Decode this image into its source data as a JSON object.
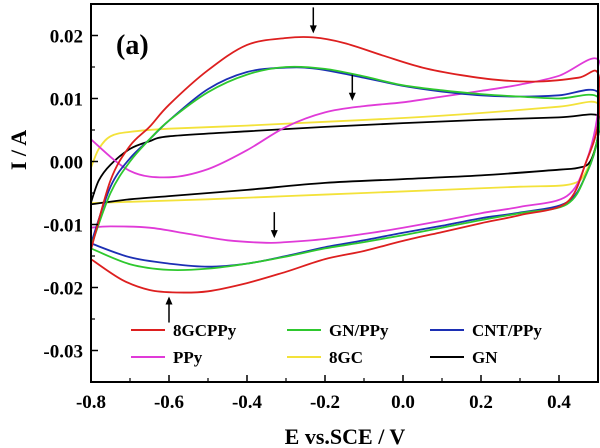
{
  "chart_data": {
    "type": "line",
    "panel_label": "(a)",
    "xlabel": "E vs.SCE / V",
    "ylabel": "I / A",
    "xlim": [
      -0.8,
      0.5
    ],
    "ylim": [
      -0.035,
      0.025
    ],
    "xticks": [
      -0.8,
      -0.6,
      -0.4,
      -0.2,
      0.0,
      0.2,
      0.4
    ],
    "xtick_labels": [
      "-0.8",
      "-0.6",
      "-0.4",
      "-0.2",
      "0.0",
      "0.2",
      "0.4"
    ],
    "yticks": [
      -0.03,
      -0.02,
      -0.01,
      0.0,
      0.01,
      0.02
    ],
    "ytick_labels": [
      "-0.03",
      "-0.02",
      "-0.01",
      "0.00",
      "0.01",
      "0.02"
    ],
    "grid": false,
    "legend_position": "bottom, inside plot, 3 columns",
    "series": [
      {
        "name": "8GCPPy",
        "color": "#dd1f1f",
        "points": [
          [
            -0.8,
            -0.014
          ],
          [
            -0.75,
            -0.003
          ],
          [
            -0.7,
            0.0025
          ],
          [
            -0.65,
            0.0055
          ],
          [
            -0.6,
            0.009
          ],
          [
            -0.5,
            0.0145
          ],
          [
            -0.4,
            0.0185
          ],
          [
            -0.3,
            0.0196
          ],
          [
            -0.23,
            0.0197
          ],
          [
            -0.15,
            0.0188
          ],
          [
            -0.05,
            0.0168
          ],
          [
            0.05,
            0.0149
          ],
          [
            0.15,
            0.0137
          ],
          [
            0.25,
            0.0129
          ],
          [
            0.35,
            0.0127
          ],
          [
            0.45,
            0.0133
          ],
          [
            0.5,
            0.014
          ],
          [
            0.5,
            0.006
          ],
          [
            0.47,
            0.0
          ],
          [
            0.42,
            -0.0065
          ],
          [
            0.3,
            -0.0085
          ],
          [
            0.2,
            -0.0098
          ],
          [
            0.1,
            -0.0112
          ],
          [
            0.0,
            -0.0126
          ],
          [
            -0.1,
            -0.0142
          ],
          [
            -0.2,
            -0.0155
          ],
          [
            -0.3,
            -0.0175
          ],
          [
            -0.4,
            -0.0193
          ],
          [
            -0.5,
            -0.0206
          ],
          [
            -0.58,
            -0.0208
          ],
          [
            -0.65,
            -0.0204
          ],
          [
            -0.72,
            -0.0188
          ],
          [
            -0.8,
            -0.0155
          ]
        ]
      },
      {
        "name": "GN/PPy",
        "color": "#2ec82e",
        "points": [
          [
            -0.8,
            -0.0135
          ],
          [
            -0.75,
            -0.005
          ],
          [
            -0.7,
            0.0
          ],
          [
            -0.65,
            0.0035
          ],
          [
            -0.6,
            0.0065
          ],
          [
            -0.5,
            0.011
          ],
          [
            -0.4,
            0.0138
          ],
          [
            -0.3,
            0.015
          ],
          [
            -0.2,
            0.0147
          ],
          [
            -0.1,
            0.0135
          ],
          [
            0.0,
            0.0121
          ],
          [
            0.1,
            0.0113
          ],
          [
            0.2,
            0.0107
          ],
          [
            0.3,
            0.0103
          ],
          [
            0.4,
            0.01
          ],
          [
            0.5,
            0.0102
          ],
          [
            0.5,
            0.004
          ],
          [
            0.47,
            -0.002
          ],
          [
            0.42,
            -0.0068
          ],
          [
            0.3,
            -0.0082
          ],
          [
            0.2,
            -0.0093
          ],
          [
            0.1,
            -0.0105
          ],
          [
            0.0,
            -0.0117
          ],
          [
            -0.1,
            -0.0128
          ],
          [
            -0.2,
            -0.0138
          ],
          [
            -0.3,
            -0.0151
          ],
          [
            -0.4,
            -0.0162
          ],
          [
            -0.5,
            -0.017
          ],
          [
            -0.6,
            -0.0172
          ],
          [
            -0.7,
            -0.0163
          ],
          [
            -0.8,
            -0.0138
          ]
        ]
      },
      {
        "name": "CNT/PPy",
        "color": "#1c2fb4",
        "points": [
          [
            -0.8,
            -0.013
          ],
          [
            -0.75,
            -0.004
          ],
          [
            -0.7,
            0.0005
          ],
          [
            -0.65,
            0.0035
          ],
          [
            -0.6,
            0.0065
          ],
          [
            -0.5,
            0.0115
          ],
          [
            -0.4,
            0.0142
          ],
          [
            -0.3,
            0.0149
          ],
          [
            -0.22,
            0.0147
          ],
          [
            -0.1,
            0.0133
          ],
          [
            0.0,
            0.012
          ],
          [
            0.1,
            0.0111
          ],
          [
            0.2,
            0.0105
          ],
          [
            0.3,
            0.0103
          ],
          [
            0.4,
            0.0105
          ],
          [
            0.5,
            0.011
          ],
          [
            0.5,
            0.004
          ],
          [
            0.47,
            -0.002
          ],
          [
            0.42,
            -0.0065
          ],
          [
            0.3,
            -0.0081
          ],
          [
            0.2,
            -0.009
          ],
          [
            0.1,
            -0.0102
          ],
          [
            0.0,
            -0.0113
          ],
          [
            -0.1,
            -0.0125
          ],
          [
            -0.2,
            -0.0136
          ],
          [
            -0.3,
            -0.015
          ],
          [
            -0.4,
            -0.0162
          ],
          [
            -0.5,
            -0.0167
          ],
          [
            -0.6,
            -0.0162
          ],
          [
            -0.7,
            -0.0152
          ],
          [
            -0.8,
            -0.013
          ]
        ]
      },
      {
        "name": "PPy",
        "color": "#e03ad8",
        "points": [
          [
            -0.8,
            0.0035
          ],
          [
            -0.7,
            -0.0015
          ],
          [
            -0.6,
            -0.0025
          ],
          [
            -0.5,
            -0.0012
          ],
          [
            -0.4,
            0.0018
          ],
          [
            -0.3,
            0.0055
          ],
          [
            -0.2,
            0.0078
          ],
          [
            -0.1,
            0.0088
          ],
          [
            0.0,
            0.0094
          ],
          [
            0.1,
            0.0103
          ],
          [
            0.2,
            0.0112
          ],
          [
            0.3,
            0.0122
          ],
          [
            0.4,
            0.0136
          ],
          [
            0.5,
            0.0162
          ],
          [
            0.5,
            0.008
          ],
          [
            0.47,
            0.0
          ],
          [
            0.42,
            -0.0055
          ],
          [
            0.3,
            -0.0072
          ],
          [
            0.2,
            -0.0082
          ],
          [
            0.1,
            -0.0094
          ],
          [
            0.0,
            -0.0105
          ],
          [
            -0.1,
            -0.0115
          ],
          [
            -0.2,
            -0.0123
          ],
          [
            -0.3,
            -0.0128
          ],
          [
            -0.35,
            -0.0129
          ],
          [
            -0.45,
            -0.0125
          ],
          [
            -0.55,
            -0.0115
          ],
          [
            -0.65,
            -0.0105
          ],
          [
            -0.75,
            -0.0103
          ],
          [
            -0.8,
            -0.0105
          ]
        ]
      },
      {
        "name": "8GC",
        "color": "#f3e23a",
        "points": [
          [
            -0.8,
            -0.001
          ],
          [
            -0.78,
            0.002
          ],
          [
            -0.75,
            0.004
          ],
          [
            -0.7,
            0.0047
          ],
          [
            -0.6,
            0.0052
          ],
          [
            -0.4,
            0.0057
          ],
          [
            -0.2,
            0.0063
          ],
          [
            0.0,
            0.0069
          ],
          [
            0.2,
            0.0077
          ],
          [
            0.4,
            0.0087
          ],
          [
            0.5,
            0.0092
          ],
          [
            0.5,
            0.004
          ],
          [
            0.47,
            -0.0015
          ],
          [
            0.43,
            -0.0036
          ],
          [
            0.3,
            -0.004
          ],
          [
            0.1,
            -0.0045
          ],
          [
            -0.1,
            -0.005
          ],
          [
            -0.3,
            -0.0055
          ],
          [
            -0.5,
            -0.006
          ],
          [
            -0.7,
            -0.0064
          ],
          [
            -0.8,
            -0.0066
          ]
        ]
      },
      {
        "name": "GN",
        "color": "#000000",
        "points": [
          [
            -0.8,
            -0.0065
          ],
          [
            -0.78,
            -0.003
          ],
          [
            -0.75,
            -0.0005
          ],
          [
            -0.7,
            0.002
          ],
          [
            -0.65,
            0.0032
          ],
          [
            -0.6,
            0.004
          ],
          [
            -0.4,
            0.0048
          ],
          [
            -0.2,
            0.0055
          ],
          [
            0.0,
            0.0061
          ],
          [
            0.2,
            0.0066
          ],
          [
            0.4,
            0.007
          ],
          [
            0.5,
            0.0073
          ],
          [
            0.5,
            0.004
          ],
          [
            0.48,
            0.0
          ],
          [
            0.45,
            -0.001
          ],
          [
            0.4,
            -0.0013
          ],
          [
            0.2,
            -0.0022
          ],
          [
            0.0,
            -0.0028
          ],
          [
            -0.2,
            -0.0034
          ],
          [
            -0.4,
            -0.0045
          ],
          [
            -0.6,
            -0.0055
          ],
          [
            -0.7,
            -0.006
          ],
          [
            -0.8,
            -0.0068
          ]
        ]
      }
    ],
    "annotations": [
      {
        "type": "arrow",
        "direction": "down",
        "x": -0.23,
        "y": 0.0197,
        "series": "8GCPPy"
      },
      {
        "type": "arrow",
        "direction": "down",
        "x": -0.13,
        "y": 0.009,
        "series": "PPy"
      },
      {
        "type": "arrow",
        "direction": "down",
        "x": -0.33,
        "y": -0.0128,
        "series": "PPy"
      },
      {
        "type": "arrow",
        "direction": "up",
        "x": -0.6,
        "y": -0.0208,
        "series": "8GCPPy"
      }
    ]
  }
}
